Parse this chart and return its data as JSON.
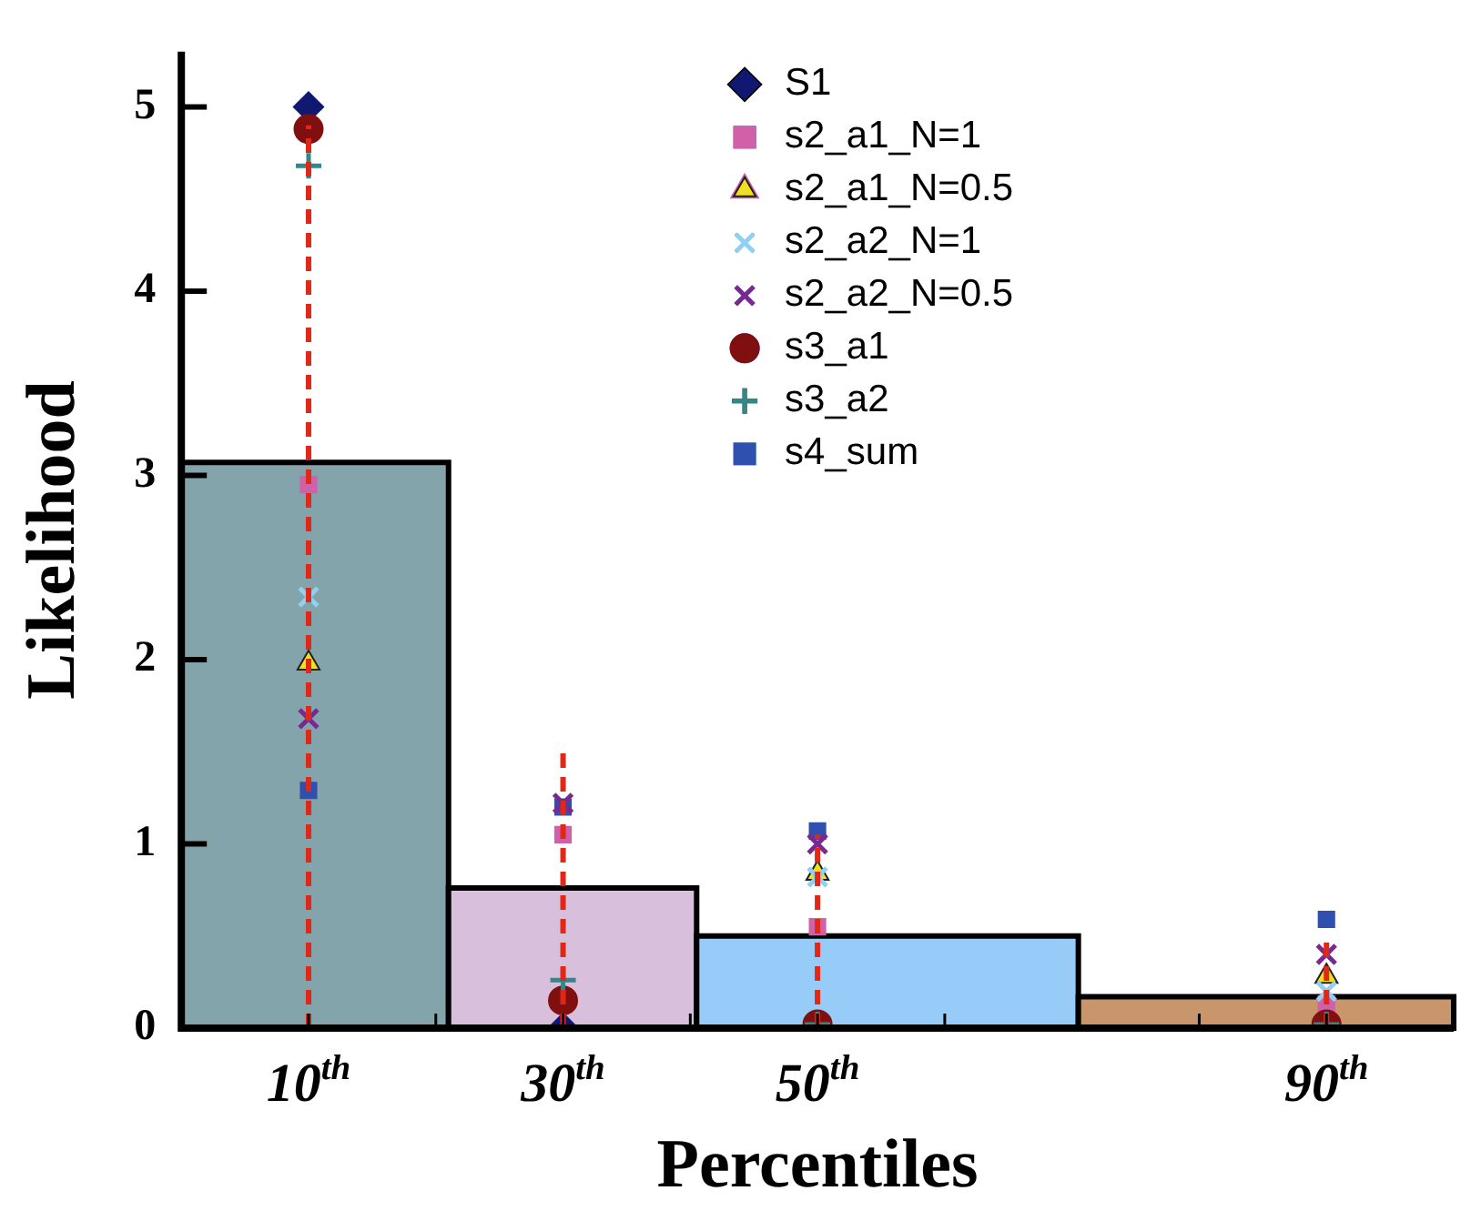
{
  "chart_data": {
    "type": "histogram",
    "xlabel": "Percentiles",
    "ylabel": "Likelihood",
    "bins": [
      0,
      21,
      40.5,
      70.5,
      100
    ],
    "values": [
      3.07,
      0.76,
      0.5,
      0.17
    ],
    "colors": [
      "#84a4ac",
      "#d8c0dc",
      "#98ccf8",
      "#c8966a"
    ],
    "xlim": [
      0,
      100
    ],
    "ylim": [
      0,
      5.3
    ],
    "xticks": [
      {
        "value": 10,
        "label": "10$^{th}$"
      },
      {
        "value": 20,
        "label": null
      },
      {
        "value": 30,
        "label": "30$^{th}$"
      },
      {
        "value": 40,
        "label": null
      },
      {
        "value": 50,
        "label": "50$^{th}$"
      },
      {
        "value": 60,
        "label": null
      },
      {
        "value": 80,
        "label": null
      },
      {
        "value": 90,
        "label": "90$^{th}$"
      }
    ],
    "yticks": [
      0,
      1,
      2,
      3,
      4,
      5
    ],
    "grid": false,
    "legend": "top",
    "series": [
      {
        "type": "line",
        "color": "#e02818",
        "line_style": "dashed",
        "marker": "none",
        "x": [
          10,
          10
        ],
        "values": [
          0,
          4.9
        ]
      },
      {
        "type": "line",
        "color": "#e02818",
        "line_style": "dashed",
        "marker": "none",
        "x": [
          30,
          30
        ],
        "values": [
          0,
          1.5
        ]
      },
      {
        "type": "line",
        "color": "#e02818",
        "line_style": "dashed",
        "marker": "none",
        "x": [
          50,
          50
        ],
        "values": [
          0,
          1.05
        ]
      },
      {
        "type": "line",
        "color": "#e02818",
        "line_style": "dashed",
        "marker": "none",
        "x": [
          90,
          90
        ],
        "values": [
          0,
          0.5
        ]
      },
      {
        "type": "scatter",
        "name": "S1",
        "color": "#101870",
        "marker": "diamond",
        "x": [
          10,
          30
        ],
        "values": [
          5.0,
          0
        ]
      },
      {
        "type": "scatter",
        "name": "s2_a1_N=1",
        "color": "#d060a8",
        "marker": "square",
        "x": [
          10,
          30,
          50,
          90
        ],
        "values": [
          2.95,
          1.05,
          0.55,
          0.13
        ]
      },
      {
        "type": "scatter",
        "name": "s2_a1_N=0.5",
        "color": "#f0e020",
        "marker": "triangle",
        "x": [
          10,
          30,
          50,
          90
        ],
        "values": [
          1.98,
          null,
          0.84,
          0.28
        ]
      },
      {
        "type": "scatter",
        "name": "s2_a2_N=1",
        "color": "#90d0f0",
        "marker": "cross",
        "x": [
          10,
          30,
          50,
          90
        ],
        "values": [
          2.34,
          null,
          0.82,
          0.2
        ]
      },
      {
        "type": "scatter",
        "name": "s2_a2_N=0.5",
        "color": "#782890",
        "marker": "cross",
        "x": [
          10,
          30,
          50,
          90
        ],
        "values": [
          1.68,
          1.22,
          1.0,
          0.4
        ]
      },
      {
        "type": "scatter",
        "name": "s3_a1",
        "color": "#801010",
        "marker": "circle",
        "x": [
          10,
          30,
          50,
          90
        ],
        "values": [
          4.88,
          0.15,
          0.02,
          0.02
        ]
      },
      {
        "type": "scatter",
        "name": "s3_a2",
        "color": "#308888",
        "marker": "plus",
        "x": [
          10,
          30,
          50,
          90
        ],
        "values": [
          4.68,
          0.26,
          0.02,
          0.02
        ]
      },
      {
        "type": "scatter",
        "name": "s4_sum",
        "color": "#3050b0",
        "marker": "square",
        "x": [
          10,
          30,
          50,
          90
        ],
        "values": [
          1.29,
          1.2,
          1.07,
          0.59
        ]
      }
    ]
  }
}
